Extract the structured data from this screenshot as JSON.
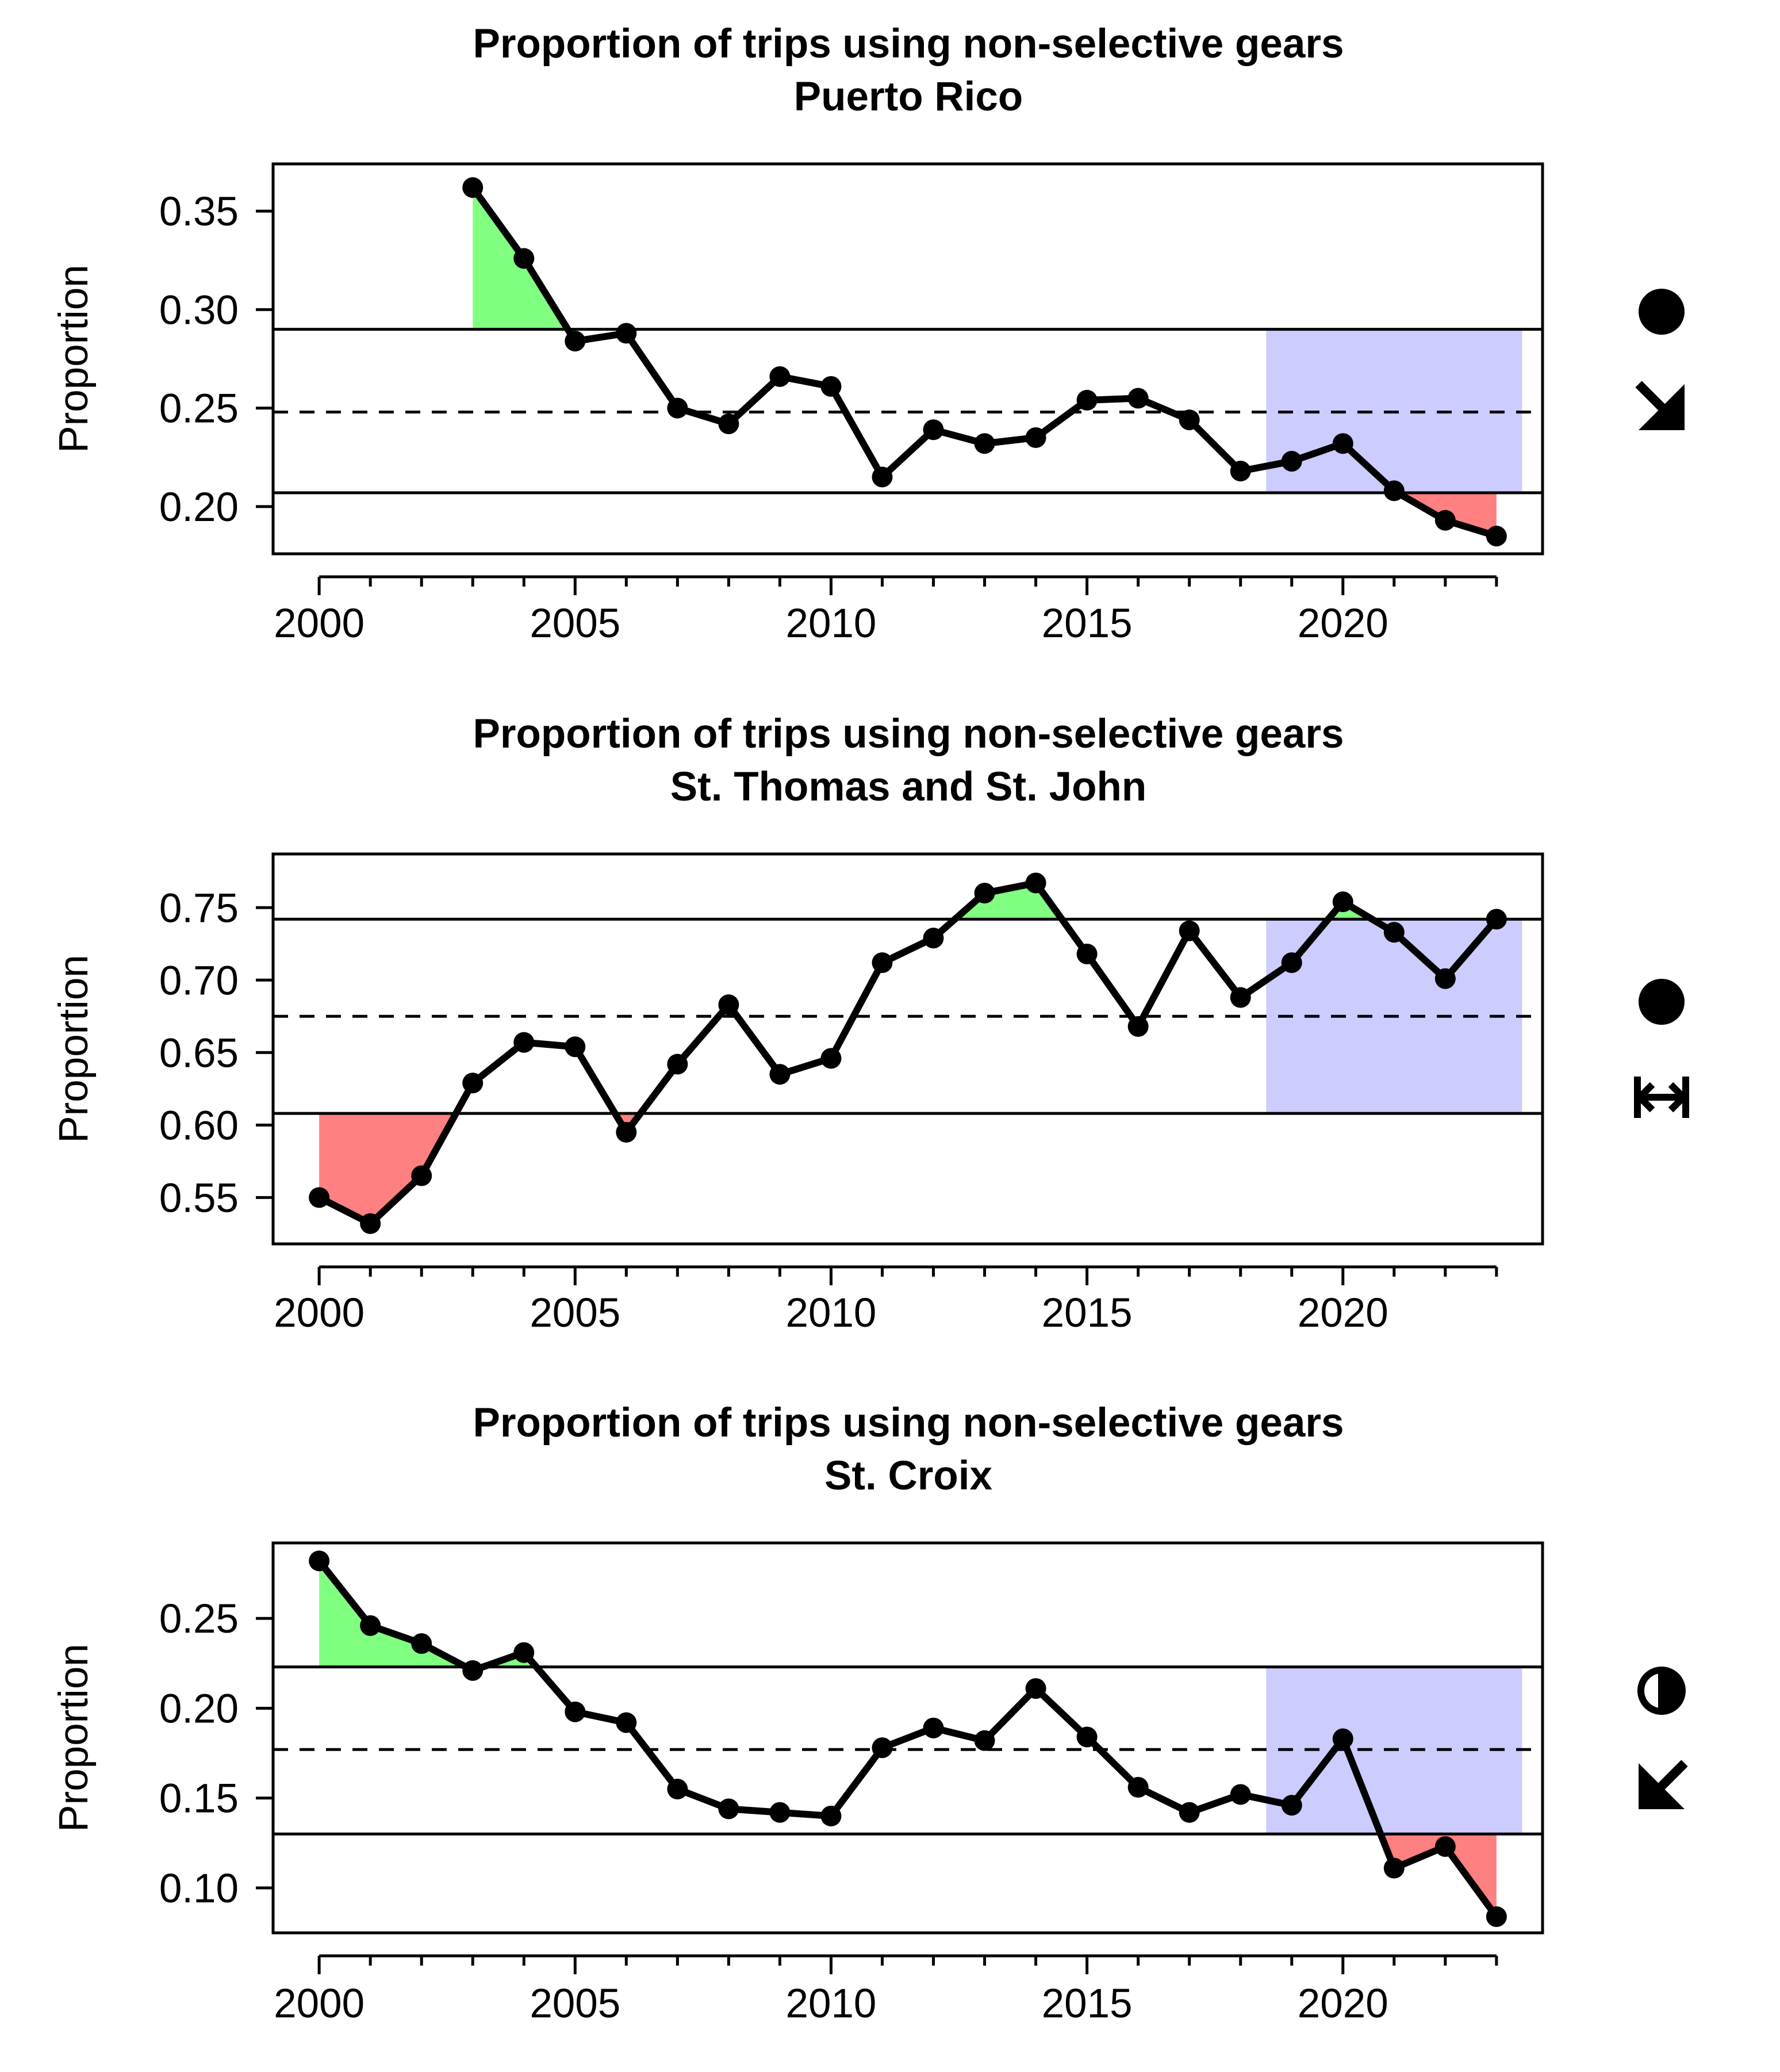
{
  "colors": {
    "above": "#80ff80",
    "below": "#ff8080",
    "recent": "#ccccff",
    "line": "#000000"
  },
  "chart_data": [
    {
      "type": "line",
      "title": "Proportion of trips using non-selective gears",
      "subtitle": "Puerto Rico",
      "ylabel": "Proportion",
      "xlim": [
        1999.1,
        2023.9
      ],
      "ylim": [
        0.176,
        0.374
      ],
      "xticks": [
        2000,
        2005,
        2010,
        2015,
        2020
      ],
      "yticks": [
        0.2,
        0.25,
        0.3,
        0.35
      ],
      "ytick_labels": [
        "0.20",
        "0.25",
        "0.30",
        "0.35"
      ],
      "mean": 0.248,
      "upper": 0.29,
      "lower": 0.207,
      "recent_window": [
        2018.5,
        2023.5
      ],
      "x": [
        2003,
        2004,
        2005,
        2006,
        2007,
        2008,
        2009,
        2010,
        2011,
        2012,
        2013,
        2014,
        2015,
        2016,
        2017,
        2018,
        2019,
        2020,
        2021,
        2022,
        2023
      ],
      "y": [
        0.362,
        0.326,
        0.284,
        0.288,
        0.25,
        0.242,
        0.266,
        0.261,
        0.215,
        0.239,
        0.232,
        0.235,
        0.254,
        0.255,
        0.244,
        0.218,
        0.223,
        0.232,
        0.208,
        0.193,
        0.185
      ],
      "indicator_mean": "solid-circle-icon",
      "indicator_trend": "arrow-down-right-icon"
    },
    {
      "type": "line",
      "title": "Proportion of trips using non-selective gears",
      "subtitle": "St. Thomas and St. John",
      "ylabel": "Proportion",
      "xlim": [
        1999.1,
        2023.9
      ],
      "ylim": [
        0.518,
        0.787
      ],
      "xticks": [
        2000,
        2005,
        2010,
        2015,
        2020
      ],
      "yticks": [
        0.55,
        0.6,
        0.65,
        0.7,
        0.75
      ],
      "ytick_labels": [
        "0.55",
        "0.60",
        "0.65",
        "0.70",
        "0.75"
      ],
      "mean": 0.675,
      "upper": 0.742,
      "lower": 0.608,
      "recent_window": [
        2018.5,
        2023.5
      ],
      "x": [
        2000,
        2001,
        2002,
        2003,
        2004,
        2005,
        2006,
        2007,
        2008,
        2009,
        2010,
        2011,
        2012,
        2013,
        2014,
        2015,
        2016,
        2017,
        2018,
        2019,
        2020,
        2021,
        2022,
        2023
      ],
      "y": [
        0.55,
        0.532,
        0.565,
        0.629,
        0.657,
        0.654,
        0.595,
        0.642,
        0.683,
        0.635,
        0.646,
        0.712,
        0.729,
        0.76,
        0.767,
        0.718,
        0.668,
        0.734,
        0.688,
        0.712,
        0.754,
        0.733,
        0.701,
        0.742
      ],
      "indicator_mean": "solid-circle-icon",
      "indicator_trend": "arrow-left-right-icon"
    },
    {
      "type": "line",
      "title": "Proportion of trips using non-selective gears",
      "subtitle": "St. Croix",
      "ylabel": "Proportion",
      "xlim": [
        1999.1,
        2023.9
      ],
      "ylim": [
        0.075,
        0.292
      ],
      "xticks": [
        2000,
        2005,
        2010,
        2015,
        2020
      ],
      "yticks": [
        0.1,
        0.15,
        0.2,
        0.25
      ],
      "ytick_labels": [
        "0.10",
        "0.15",
        "0.20",
        "0.25"
      ],
      "mean": 0.177,
      "upper": 0.223,
      "lower": 0.13,
      "recent_window": [
        2018.5,
        2023.5
      ],
      "x": [
        2000,
        2001,
        2002,
        2003,
        2004,
        2005,
        2006,
        2007,
        2008,
        2009,
        2010,
        2011,
        2012,
        2013,
        2014,
        2015,
        2016,
        2017,
        2018,
        2019,
        2020,
        2021,
        2022,
        2023
      ],
      "y": [
        0.282,
        0.246,
        0.236,
        0.221,
        0.231,
        0.198,
        0.192,
        0.155,
        0.144,
        0.142,
        0.14,
        0.178,
        0.189,
        0.182,
        0.211,
        0.184,
        0.156,
        0.142,
        0.152,
        0.146,
        0.183,
        0.111,
        0.123,
        0.084
      ],
      "indicator_mean": "half-circle-icon",
      "indicator_trend": "arrow-down-left-icon"
    }
  ]
}
